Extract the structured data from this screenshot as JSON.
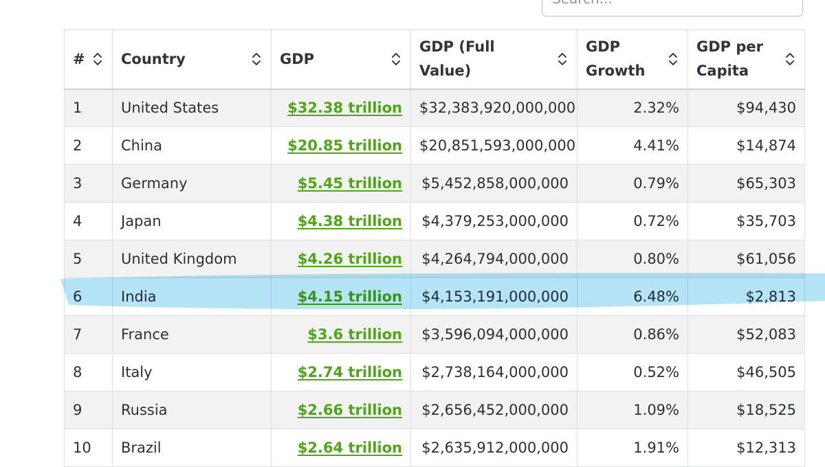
{
  "search": {
    "placeholder": "Search..."
  },
  "table": {
    "headers": [
      {
        "label": "#",
        "sortable": true
      },
      {
        "label": "Country",
        "sortable": true
      },
      {
        "label": "GDP",
        "sortable": true
      },
      {
        "label": "GDP (Full Value)",
        "sortable": true
      },
      {
        "label": "GDP Growth",
        "sortable": true
      },
      {
        "label": "GDP per Capita",
        "sortable": true
      }
    ],
    "rows": [
      {
        "rank": "1",
        "country": "United States",
        "gdp": "$32.38 trillion",
        "gdp_full": "$32,383,920,000,000",
        "growth": "2.32%",
        "per_capita": "$94,430"
      },
      {
        "rank": "2",
        "country": "China",
        "gdp": "$20.85 trillion",
        "gdp_full": "$20,851,593,000,000",
        "growth": "4.41%",
        "per_capita": "$14,874"
      },
      {
        "rank": "3",
        "country": "Germany",
        "gdp": "$5.45 trillion",
        "gdp_full": "$5,452,858,000,000",
        "growth": "0.79%",
        "per_capita": "$65,303"
      },
      {
        "rank": "4",
        "country": "Japan",
        "gdp": "$4.38 trillion",
        "gdp_full": "$4,379,253,000,000",
        "growth": "0.72%",
        "per_capita": "$35,703"
      },
      {
        "rank": "5",
        "country": "United Kingdom",
        "gdp": "$4.26 trillion",
        "gdp_full": "$4,264,794,000,000",
        "growth": "0.80%",
        "per_capita": "$61,056"
      },
      {
        "rank": "6",
        "country": "India",
        "gdp": "$4.15 trillion",
        "gdp_full": "$4,153,191,000,000",
        "growth": "6.48%",
        "per_capita": "$2,813"
      },
      {
        "rank": "7",
        "country": "France",
        "gdp": "$3.6 trillion",
        "gdp_full": "$3,596,094,000,000",
        "growth": "0.86%",
        "per_capita": "$52,083"
      },
      {
        "rank": "8",
        "country": "Italy",
        "gdp": "$2.74 trillion",
        "gdp_full": "$2,738,164,000,000",
        "growth": "0.52%",
        "per_capita": "$46,505"
      },
      {
        "rank": "9",
        "country": "Russia",
        "gdp": "$2.66 trillion",
        "gdp_full": "$2,656,452,000,000",
        "growth": "1.09%",
        "per_capita": "$18,525"
      },
      {
        "rank": "10",
        "country": "Brazil",
        "gdp": "$2.64 trillion",
        "gdp_full": "$2,635,912,000,000",
        "growth": "1.91%",
        "per_capita": "$12,313"
      }
    ]
  },
  "colors": {
    "link_green": "#4fa618",
    "highlight_blue": "#a8dff6",
    "stripe_gray": "#f2f2f2",
    "border": "#dcdfe3"
  },
  "icons": {
    "sort": "sort-icon",
    "highlight": "highlighter-stroke"
  }
}
